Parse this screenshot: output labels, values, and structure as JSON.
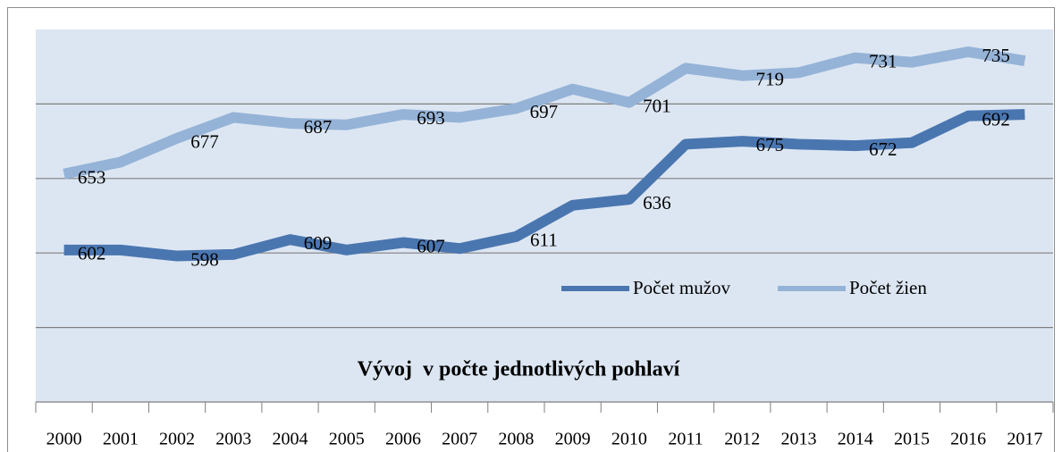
{
  "chart_data": {
    "type": "line",
    "title": "Vývoj  v počte jednotlivých pohlaví",
    "categories": [
      "2000",
      "2001",
      "2002",
      "2003",
      "2004",
      "2005",
      "2006",
      "2007",
      "2008",
      "2009",
      "2010",
      "2011",
      "2012",
      "2013",
      "2014",
      "2015",
      "2016",
      "2017"
    ],
    "series": [
      {
        "name": "Počet mužov",
        "color": "#4a76b0",
        "values": [
          602,
          602,
          598,
          599,
          609,
          602,
          607,
          603,
          611,
          632,
          636,
          673,
          675,
          673,
          672,
          674,
          692,
          693
        ]
      },
      {
        "name": "Počet žien",
        "color": "#95b3d7",
        "values": [
          653,
          661,
          677,
          691,
          687,
          686,
          693,
          691,
          697,
          710,
          701,
          724,
          719,
          721,
          731,
          728,
          735,
          729
        ]
      }
    ],
    "ylim": [
      500,
      750
    ],
    "yticks": [
      550,
      600,
      650,
      700
    ],
    "grid": true,
    "legend": "center"
  }
}
